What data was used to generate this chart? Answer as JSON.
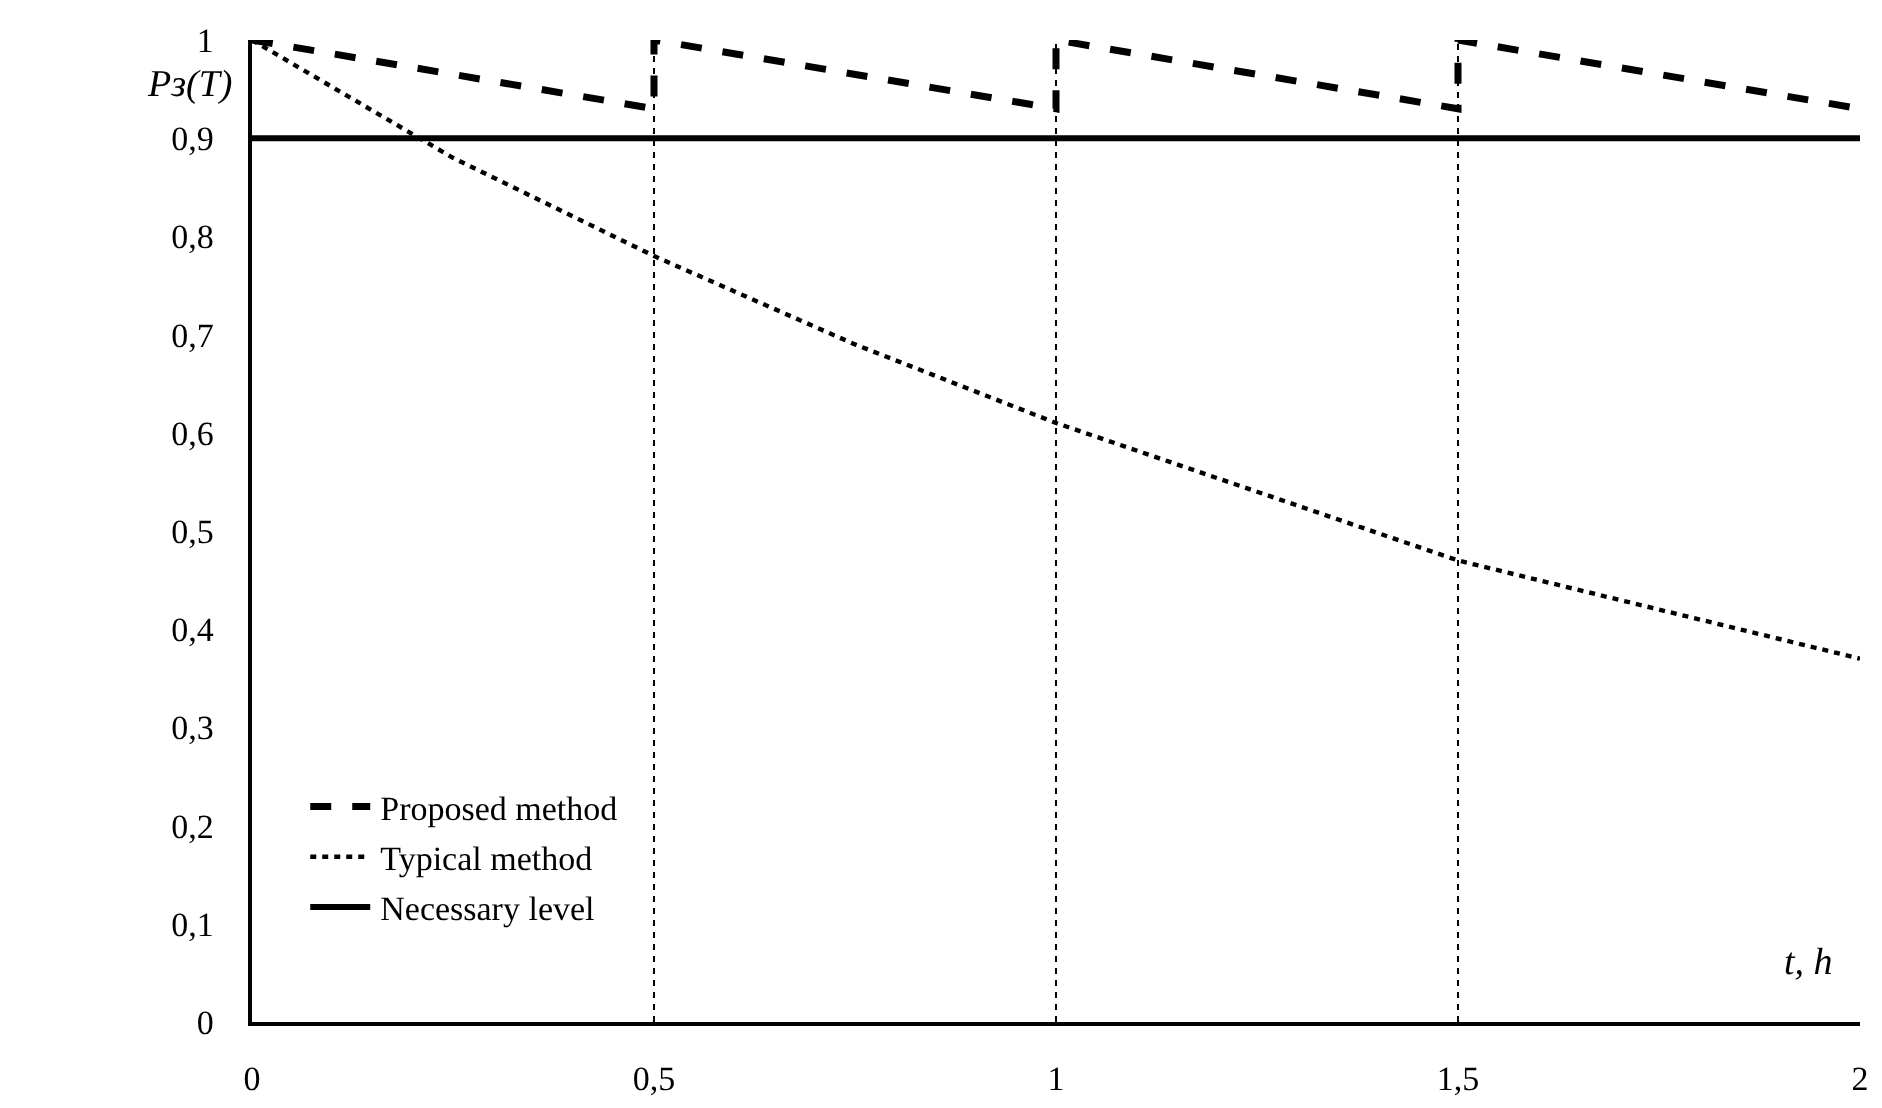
{
  "chart_data": {
    "type": "line",
    "xlabel": "t, h",
    "ylabel": "Pз(T)",
    "xlim": [
      0,
      2
    ],
    "xticks": [
      0,
      {
        "value": 0.5,
        "label": "0,5"
      },
      1,
      {
        "value": 1.5,
        "label": "1,5"
      },
      2
    ],
    "ylim": [
      0,
      1
    ],
    "yticks": [
      0,
      {
        "value": 0.1,
        "label": "0,1"
      },
      {
        "value": 0.2,
        "label": "0,2"
      },
      {
        "value": 0.3,
        "label": "0,3"
      },
      {
        "value": 0.4,
        "label": "0,4"
      },
      {
        "value": 0.5,
        "label": "0,5"
      },
      {
        "value": 0.6,
        "label": "0,6"
      },
      {
        "value": 0.7,
        "label": "0,7"
      },
      {
        "value": 0.8,
        "label": "0,8"
      },
      {
        "value": 0.9,
        "label": "0,9"
      },
      1
    ],
    "grid": false,
    "legend": "bottom left",
    "marker": "none",
    "series": [
      {
        "name": "Proposed method",
        "color": "#000000",
        "line_style": "dashed",
        "x": [
          0,
          0.5,
          0.5,
          1,
          1,
          1.5,
          1.5,
          2
        ],
        "values": [
          1,
          0.93,
          1,
          0.93,
          1,
          0.93,
          1,
          0.93
        ]
      },
      {
        "name": "Typical method",
        "color": "#000000",
        "line_style": "dotted",
        "x": [
          0,
          0.25,
          0.5,
          0.75,
          1,
          1.25,
          1.5,
          1.75,
          2
        ],
        "values": [
          1,
          0.88,
          0.78,
          0.69,
          0.61,
          0.54,
          0.47,
          0.42,
          0.37
        ]
      },
      {
        "name": "Necessary level",
        "color": "#000000",
        "line_style": "solid",
        "x": [
          0,
          2
        ],
        "values": [
          0.9,
          0.9
        ]
      }
    ],
    "ref_lines": [
      {
        "axis": "x",
        "value": 0.5,
        "color": "#000000",
        "line_style": "dotted"
      },
      {
        "axis": "x",
        "value": 1,
        "color": "#000000",
        "line_style": "dotted"
      },
      {
        "axis": "x",
        "value": 1.5,
        "color": "#000000",
        "line_style": "dotted"
      }
    ]
  }
}
